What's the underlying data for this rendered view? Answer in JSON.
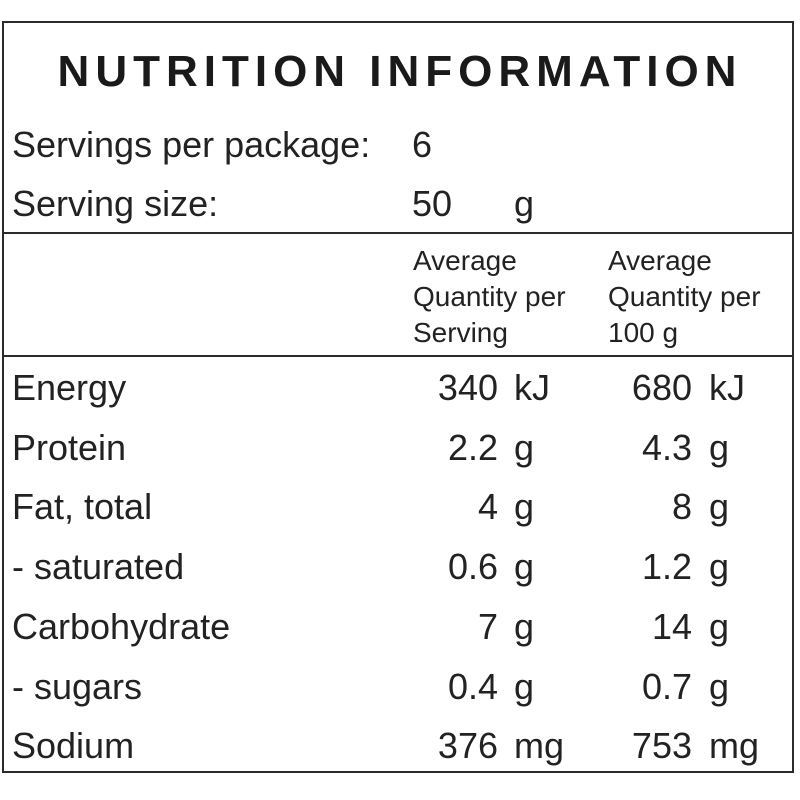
{
  "title": "NUTRITION INFORMATION",
  "servings_per_package": {
    "label": "Servings per package:",
    "value": "6"
  },
  "serving_size": {
    "label": "Serving size:",
    "value": "50",
    "unit": "g"
  },
  "columns": {
    "per_serving": [
      "Average",
      "Quantity per",
      "Serving"
    ],
    "per_100g": [
      "Average",
      "Quantity per",
      "100 g"
    ]
  },
  "rows": [
    {
      "name": "Energy",
      "serving": "340",
      "serving_unit": "kJ",
      "per100": "680",
      "per100_unit": "kJ"
    },
    {
      "name": "Protein",
      "serving": "2.2",
      "serving_unit": "g",
      "per100": "4.3",
      "per100_unit": "g"
    },
    {
      "name": "Fat, total",
      "serving": "4",
      "serving_unit": "g",
      "per100": "8",
      "per100_unit": "g"
    },
    {
      "name": "- saturated",
      "serving": "0.6",
      "serving_unit": "g",
      "per100": "1.2",
      "per100_unit": "g"
    },
    {
      "name": "Carbohydrate",
      "serving": "7",
      "serving_unit": "g",
      "per100": "14",
      "per100_unit": "g"
    },
    {
      "name": "- sugars",
      "serving": "0.4",
      "serving_unit": "g",
      "per100": "0.7",
      "per100_unit": "g"
    },
    {
      "name": "Sodium",
      "serving": "376",
      "serving_unit": "mg",
      "per100": "753",
      "per100_unit": "mg"
    }
  ]
}
